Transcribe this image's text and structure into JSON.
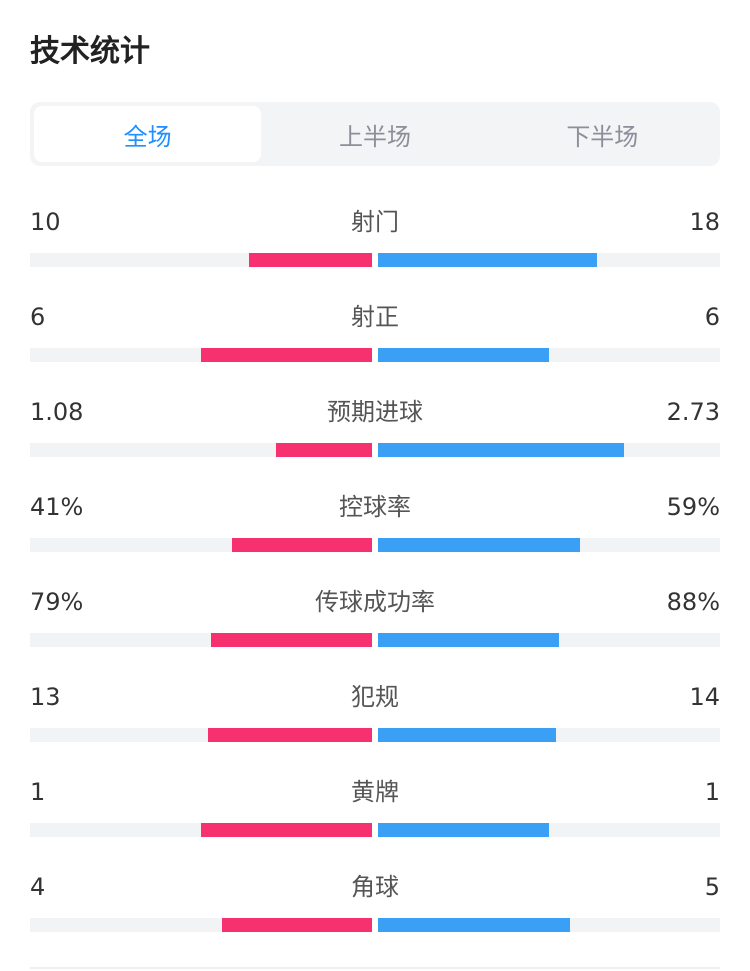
{
  "title": "技术统计",
  "tabs": [
    {
      "label": "全场",
      "active": true
    },
    {
      "label": "上半场",
      "active": false
    },
    {
      "label": "下半场",
      "active": false
    }
  ],
  "colors": {
    "home": "#f7306f",
    "away": "#3aa0f5",
    "active_tab": "#1e90ff"
  },
  "stats": [
    {
      "label": "射门",
      "home": "10",
      "away": "18",
      "home_bar": 0.36,
      "away_bar": 0.64
    },
    {
      "label": "射正",
      "home": "6",
      "away": "6",
      "home_bar": 0.5,
      "away_bar": 0.5
    },
    {
      "label": "预期进球",
      "home": "1.08",
      "away": "2.73",
      "home_bar": 0.28,
      "away_bar": 0.72
    },
    {
      "label": "控球率",
      "home": "41%",
      "away": "59%",
      "home_bar": 0.41,
      "away_bar": 0.59
    },
    {
      "label": "传球成功率",
      "home": "79%",
      "away": "88%",
      "home_bar": 0.47,
      "away_bar": 0.53
    },
    {
      "label": "犯规",
      "home": "13",
      "away": "14",
      "home_bar": 0.48,
      "away_bar": 0.52
    },
    {
      "label": "黄牌",
      "home": "1",
      "away": "1",
      "home_bar": 0.5,
      "away_bar": 0.5
    },
    {
      "label": "角球",
      "home": "4",
      "away": "5",
      "home_bar": 0.44,
      "away_bar": 0.56
    }
  ]
}
